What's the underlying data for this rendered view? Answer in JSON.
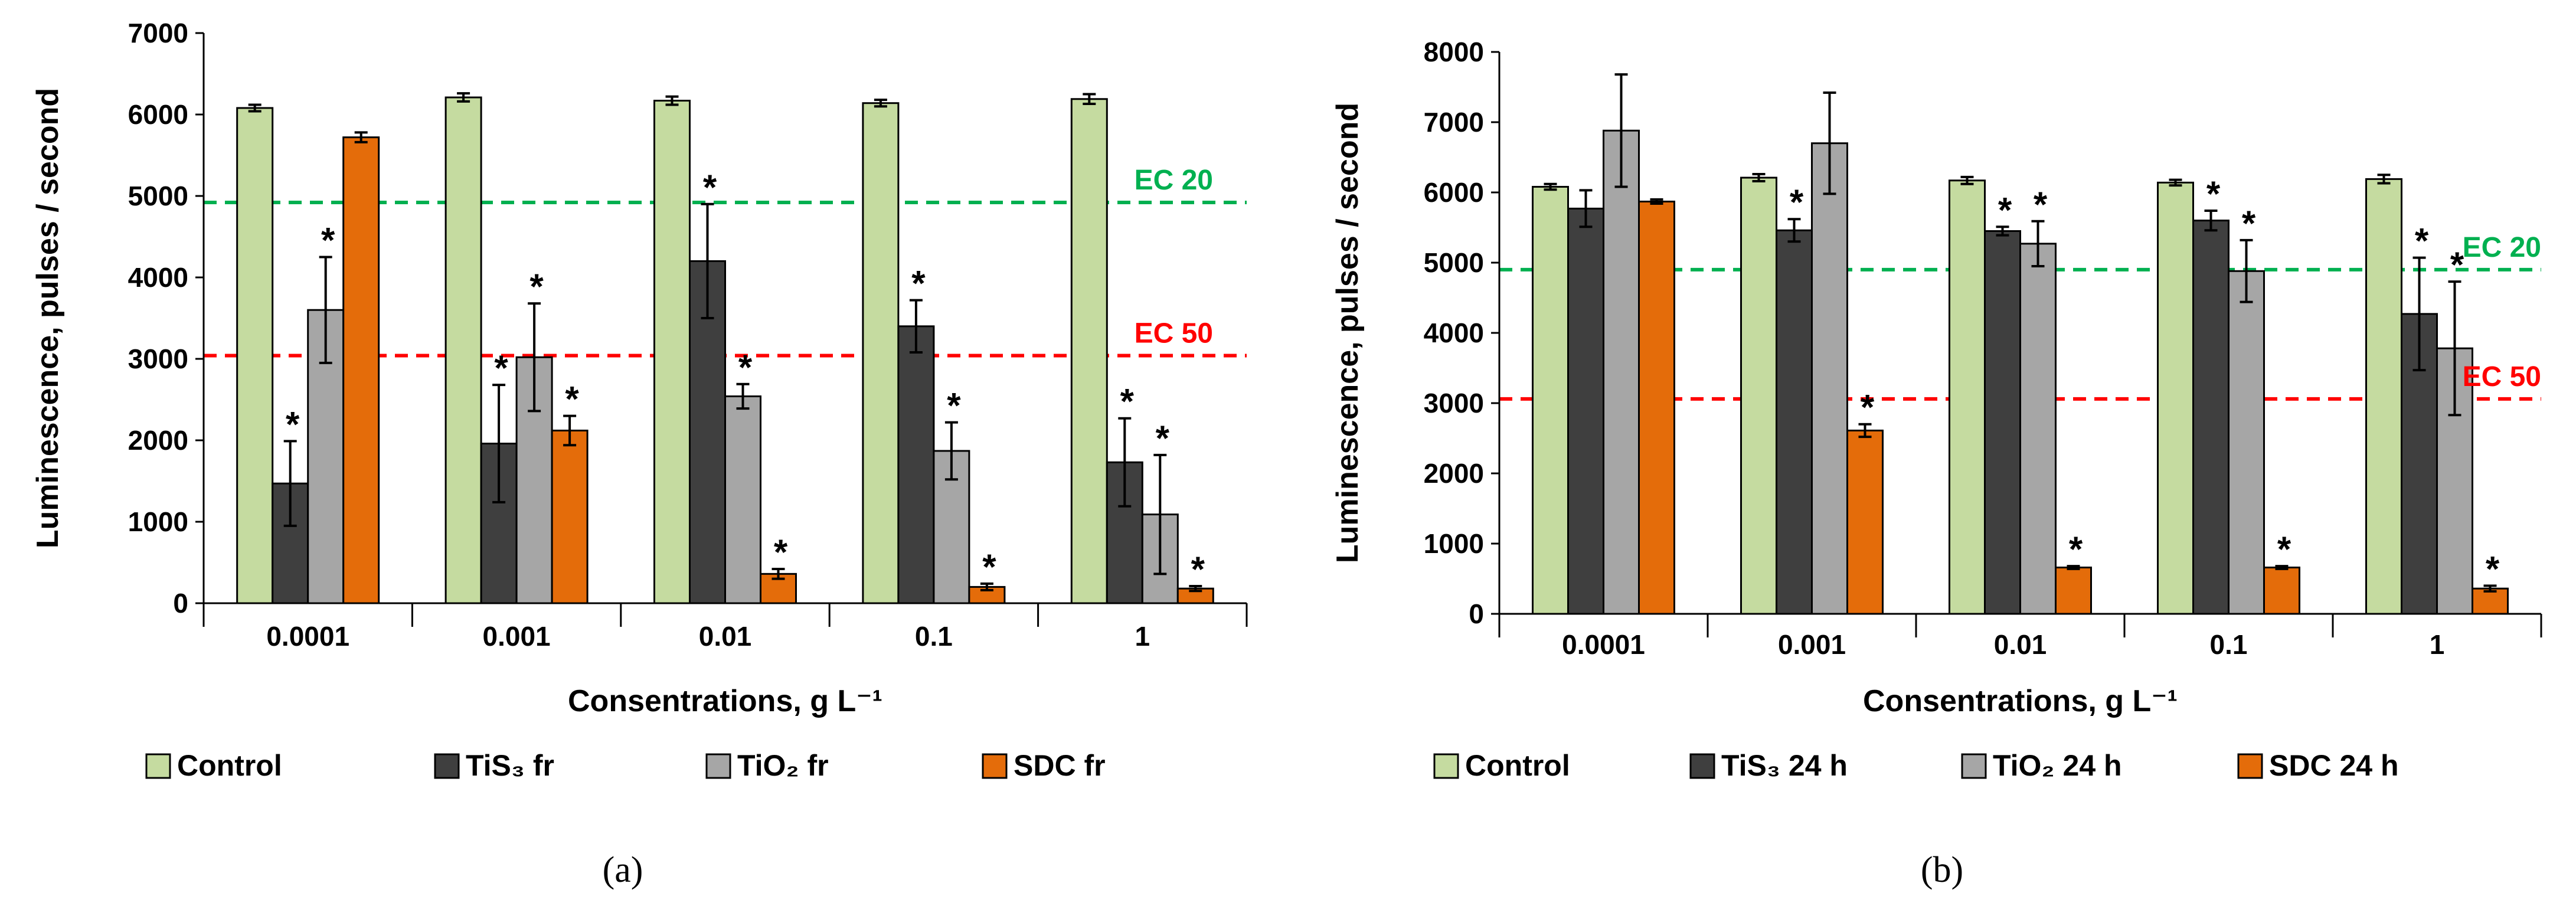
{
  "colors": {
    "control": "#c5dba0",
    "tis3": "#3f3f3f",
    "tio2": "#a6a6a6",
    "sdc": "#e46c0a",
    "ec20": "#00b050",
    "ec50": "#ff0000",
    "axis": "#000000",
    "bar_outline": "#000000"
  },
  "chart_data": [
    {
      "type": "bar",
      "panel_label": "(a)",
      "ylabel": "Luminescence, pulses / second",
      "xlabel": "Consentrations, g L⁻¹",
      "ylim": [
        0,
        7000
      ],
      "yticks": [
        "0",
        "1000",
        "2000",
        "3000",
        "4000",
        "5000",
        "6000",
        "7000"
      ],
      "ytick_values": [
        0,
        1000,
        2000,
        3000,
        4000,
        5000,
        6000,
        7000
      ],
      "categories": [
        "0.0001",
        "0.001",
        "0.01",
        "0.1",
        "1"
      ],
      "legend_position": "bottom",
      "series": [
        {
          "name": "Control",
          "color_key": "control",
          "values": [
            6080,
            6210,
            6170,
            6140,
            6190
          ],
          "errors": [
            40,
            50,
            50,
            40,
            60
          ],
          "significant": [
            false,
            false,
            false,
            false,
            false
          ]
        },
        {
          "name": "TiS₃ fr",
          "color_key": "tis3",
          "values": [
            1470,
            1960,
            4200,
            3400,
            1730
          ],
          "errors": [
            520,
            720,
            700,
            320,
            540
          ],
          "significant": [
            true,
            true,
            true,
            true,
            true
          ]
        },
        {
          "name": "TiO₂ fr",
          "color_key": "tio2",
          "values": [
            3600,
            3020,
            2540,
            1870,
            1090
          ],
          "errors": [
            650,
            660,
            150,
            350,
            730
          ],
          "significant": [
            true,
            true,
            true,
            true,
            true
          ]
        },
        {
          "name": "SDC fr",
          "color_key": "sdc",
          "values": [
            5720,
            2120,
            360,
            200,
            180
          ],
          "errors": [
            60,
            180,
            60,
            40,
            30
          ],
          "significant": [
            false,
            true,
            true,
            true,
            true
          ]
        }
      ],
      "reference_lines": [
        {
          "label": "EC 20",
          "value": 4920,
          "color_key": "ec20"
        },
        {
          "label": "EC 50",
          "value": 3040,
          "color_key": "ec50"
        }
      ],
      "significance_marker": "*"
    },
    {
      "type": "bar",
      "panel_label": "(b)",
      "ylabel": "Luminescence, pulses / second",
      "xlabel": "Consentrations, g L⁻¹",
      "ylim": [
        0,
        8000
      ],
      "yticks": [
        "0",
        "1000",
        "2000",
        "3000",
        "4000",
        "5000",
        "6000",
        "7000",
        "8000"
      ],
      "ytick_values": [
        0,
        1000,
        2000,
        3000,
        4000,
        5000,
        6000,
        7000,
        8000
      ],
      "categories": [
        "0.0001",
        "0.001",
        "0.01",
        "0.1",
        "1"
      ],
      "legend_position": "bottom",
      "series": [
        {
          "name": "Control",
          "color_key": "control",
          "values": [
            6080,
            6210,
            6170,
            6140,
            6190
          ],
          "errors": [
            40,
            50,
            50,
            40,
            60
          ],
          "significant": [
            false,
            false,
            false,
            false,
            false
          ]
        },
        {
          "name": "TiS₃ 24 h",
          "color_key": "tis3",
          "values": [
            5770,
            5460,
            5450,
            5600,
            4270
          ],
          "errors": [
            260,
            160,
            60,
            140,
            800
          ],
          "significant": [
            false,
            true,
            true,
            true,
            true
          ]
        },
        {
          "name": "TiO₂ 24 h",
          "color_key": "tio2",
          "values": [
            6880,
            6700,
            5270,
            4880,
            3780
          ],
          "errors": [
            800,
            720,
            320,
            440,
            950
          ],
          "significant": [
            false,
            false,
            true,
            true,
            true
          ]
        },
        {
          "name": "SDC 24 h",
          "color_key": "sdc",
          "values": [
            5870,
            2610,
            660,
            660,
            360
          ],
          "errors": [
            30,
            90,
            20,
            20,
            40
          ],
          "significant": [
            false,
            true,
            true,
            true,
            true
          ]
        }
      ],
      "reference_lines": [
        {
          "label": "EC 20",
          "value": 4900,
          "color_key": "ec20"
        },
        {
          "label": "EC 50",
          "value": 3060,
          "color_key": "ec50"
        }
      ],
      "significance_marker": "*"
    }
  ]
}
